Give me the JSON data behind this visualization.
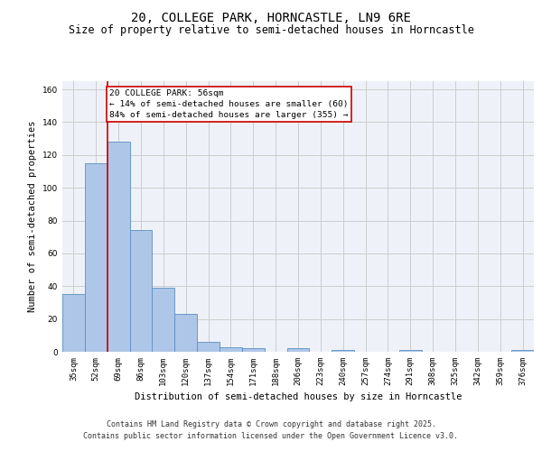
{
  "title_line1": "20, COLLEGE PARK, HORNCASTLE, LN9 6RE",
  "title_line2": "Size of property relative to semi-detached houses in Horncastle",
  "xlabel": "Distribution of semi-detached houses by size in Horncastle",
  "ylabel": "Number of semi-detached properties",
  "categories": [
    "35sqm",
    "52sqm",
    "69sqm",
    "86sqm",
    "103sqm",
    "120sqm",
    "137sqm",
    "154sqm",
    "171sqm",
    "188sqm",
    "206sqm",
    "223sqm",
    "240sqm",
    "257sqm",
    "274sqm",
    "291sqm",
    "308sqm",
    "325sqm",
    "342sqm",
    "359sqm",
    "376sqm"
  ],
  "values": [
    35,
    115,
    128,
    74,
    39,
    23,
    6,
    3,
    2,
    0,
    2,
    0,
    1,
    0,
    0,
    1,
    0,
    0,
    0,
    0,
    1
  ],
  "bar_color": "#aec6e8",
  "bar_edge_color": "#5a8fc0",
  "annotation_text": "20 COLLEGE PARK: 56sqm\n← 14% of semi-detached houses are smaller (60)\n84% of semi-detached houses are larger (355) →",
  "annotation_box_color": "#ffffff",
  "annotation_box_edge": "#cc0000",
  "vline_color": "#cc0000",
  "vline_x": 1.5,
  "ylim": [
    0,
    165
  ],
  "yticks": [
    0,
    20,
    40,
    60,
    80,
    100,
    120,
    140,
    160
  ],
  "grid_color": "#cccccc",
  "background_color": "#eef2f8",
  "footer_line1": "Contains HM Land Registry data © Crown copyright and database right 2025.",
  "footer_line2": "Contains public sector information licensed under the Open Government Licence v3.0.",
  "title_fontsize": 10,
  "subtitle_fontsize": 8.5,
  "axis_label_fontsize": 7.5,
  "tick_fontsize": 6.5,
  "annotation_fontsize": 6.8,
  "footer_fontsize": 6.0
}
